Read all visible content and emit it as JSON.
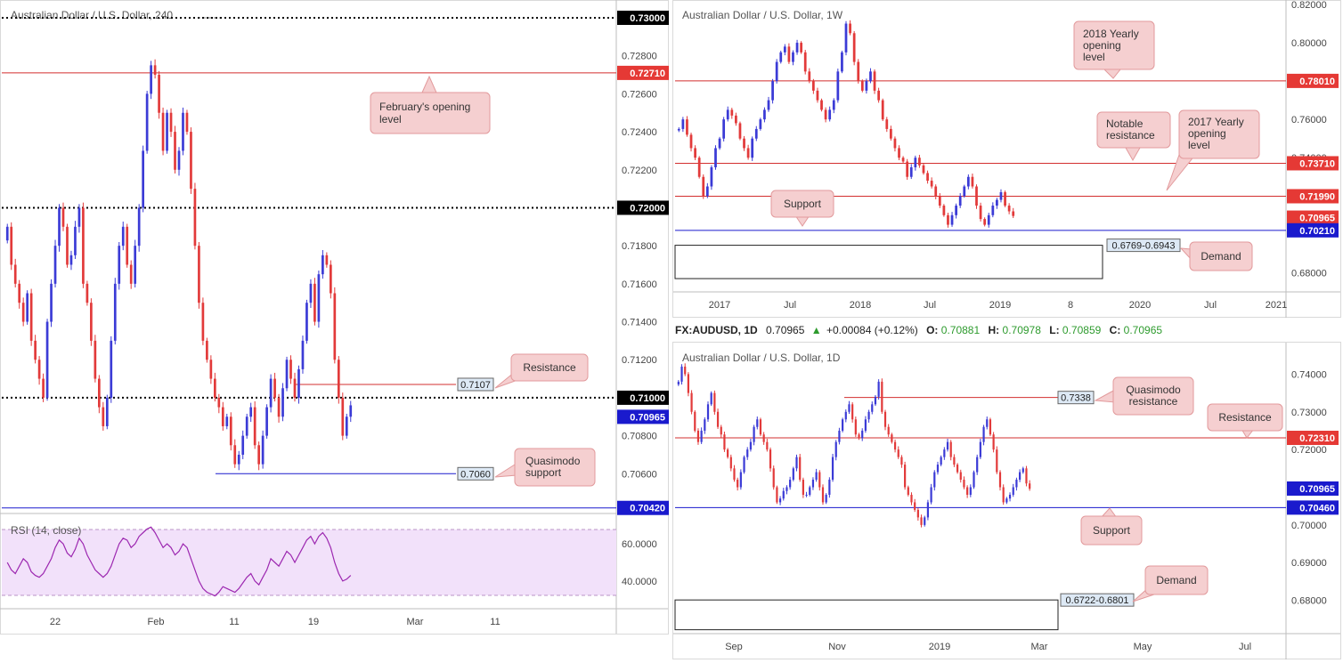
{
  "colors": {
    "up": "#3b3bd6",
    "down": "#e23a3a",
    "red_level": "#d32f2f",
    "blue_level": "#1a1acd",
    "callout_fill": "#f5cfd0",
    "callout_stroke": "#e29a9c",
    "rsi_fill": "#f2e1fa",
    "rsi_line": "#9c27b0",
    "info_green": "#2e9b2e"
  },
  "chart_data": [
    {
      "id": "h4",
      "type": "candlestick",
      "title": "Australian Dollar / U.S. Dollar, 240",
      "ylim": [
        0.704,
        0.73
      ],
      "x_ticks": [
        "22",
        "Feb",
        "11",
        "19",
        "Mar",
        "11"
      ],
      "y_ticks": [
        "0.72800",
        "0.72600",
        "0.72400",
        "0.72200",
        "0.71800",
        "0.71600",
        "0.71400",
        "0.71200",
        "0.70800",
        "0.70600"
      ],
      "dotted_levels": [
        0.73,
        0.72,
        0.71
      ],
      "lines": [
        {
          "value": 0.7271,
          "color": "red",
          "tag": "0.72710"
        },
        {
          "value": 0.7107,
          "color": "red",
          "label": "0.7107"
        },
        {
          "value": 0.706,
          "color": "blue",
          "label": "0.7060"
        },
        {
          "value": 0.7042,
          "color": "blue",
          "tag": "0.70420"
        }
      ],
      "price_tags": [
        "0.73000",
        "0.72000",
        "0.71000",
        "0.70965"
      ],
      "current": 0.70965,
      "annotations": [
        "February's opening level",
        "Resistance",
        "Quasimodo support"
      ],
      "closes": [
        0.719,
        0.717,
        0.716,
        0.715,
        0.714,
        0.7155,
        0.713,
        0.712,
        0.711,
        0.71,
        0.714,
        0.716,
        0.718,
        0.72,
        0.719,
        0.717,
        0.7175,
        0.719,
        0.72,
        0.716,
        0.715,
        0.713,
        0.711,
        0.7095,
        0.7085,
        0.71,
        0.713,
        0.716,
        0.718,
        0.719,
        0.717,
        0.716,
        0.718,
        0.72,
        0.723,
        0.726,
        0.7275,
        0.727,
        0.725,
        0.723,
        0.725,
        0.724,
        0.722,
        0.723,
        0.725,
        0.724,
        0.721,
        0.718,
        0.715,
        0.713,
        0.712,
        0.711,
        0.71,
        0.7095,
        0.7085,
        0.709,
        0.7075,
        0.7065,
        0.707,
        0.708,
        0.709,
        0.7095,
        0.7075,
        0.7065,
        0.708,
        0.7095,
        0.711,
        0.71,
        0.709,
        0.7105,
        0.712,
        0.711,
        0.71,
        0.7115,
        0.713,
        0.715,
        0.716,
        0.714,
        0.7165,
        0.7175,
        0.717,
        0.7155,
        0.712,
        0.71,
        0.708,
        0.709,
        0.7096
      ],
      "rsi": {
        "label": "RSI (14, close)",
        "ylim": [
          28,
          72
        ],
        "ticks": [
          "60.0000",
          "40.0000"
        ],
        "values": [
          50,
          46,
          44,
          48,
          52,
          50,
          45,
          43,
          42,
          44,
          48,
          52,
          58,
          62,
          60,
          55,
          53,
          57,
          63,
          60,
          54,
          50,
          46,
          44,
          42,
          44,
          48,
          54,
          60,
          63,
          62,
          58,
          60,
          64,
          66,
          68,
          69,
          66,
          62,
          58,
          60,
          58,
          54,
          56,
          60,
          58,
          52,
          46,
          40,
          36,
          34,
          33,
          32,
          34,
          37,
          36,
          35,
          34,
          36,
          39,
          42,
          44,
          40,
          38,
          42,
          46,
          52,
          50,
          48,
          52,
          56,
          54,
          50,
          54,
          58,
          62,
          64,
          60,
          64,
          66,
          63,
          58,
          50,
          44,
          40,
          41,
          43
        ]
      }
    },
    {
      "id": "w1",
      "type": "candlestick",
      "title": "Australian Dollar / U.S. Dollar, 1W",
      "ylim": [
        0.676,
        0.82
      ],
      "x_ticks": [
        "2017",
        "Jul",
        "2018",
        "Jul",
        "2019",
        "8",
        "2020",
        "Jul",
        "2021"
      ],
      "y_ticks": [
        "0.82000",
        "0.80000",
        "0.76000",
        "0.74000",
        "0.68000"
      ],
      "lines": [
        {
          "value": 0.7801,
          "color": "red",
          "tag": "0.78010"
        },
        {
          "value": 0.7371,
          "color": "red",
          "tag": "0.73710"
        },
        {
          "value": 0.7199,
          "color": "red",
          "tag": "0.71990"
        },
        {
          "value": 0.7021,
          "color": "blue",
          "tag": "0.70210"
        }
      ],
      "current": 0.70965,
      "price_tags": [
        "0.70965"
      ],
      "zone": {
        "low": 0.6769,
        "high": 0.6943,
        "label": "0.6769-0.6943"
      },
      "annotations": [
        "2018 Yearly opening level",
        "Notable resistance",
        "2017 Yearly opening level",
        "Support",
        "Demand"
      ],
      "closes": [
        0.755,
        0.76,
        0.752,
        0.745,
        0.74,
        0.73,
        0.72,
        0.725,
        0.735,
        0.745,
        0.75,
        0.76,
        0.765,
        0.762,
        0.758,
        0.75,
        0.745,
        0.74,
        0.75,
        0.755,
        0.76,
        0.765,
        0.77,
        0.78,
        0.79,
        0.795,
        0.798,
        0.79,
        0.795,
        0.8,
        0.795,
        0.785,
        0.78,
        0.775,
        0.77,
        0.765,
        0.76,
        0.765,
        0.77,
        0.785,
        0.795,
        0.81,
        0.805,
        0.79,
        0.78,
        0.775,
        0.78,
        0.785,
        0.775,
        0.77,
        0.76,
        0.755,
        0.75,
        0.745,
        0.74,
        0.738,
        0.73,
        0.735,
        0.74,
        0.736,
        0.732,
        0.728,
        0.725,
        0.72,
        0.715,
        0.71,
        0.705,
        0.71,
        0.715,
        0.72,
        0.725,
        0.73,
        0.725,
        0.715,
        0.708,
        0.705,
        0.71,
        0.715,
        0.718,
        0.722,
        0.715,
        0.712,
        0.7096
      ]
    },
    {
      "id": "d1",
      "type": "candlestick",
      "title": "Australian Dollar / U.S. Dollar, 1D",
      "ylim": [
        0.674,
        0.746
      ],
      "x_ticks": [
        "Sep",
        "Nov",
        "2019",
        "Mar",
        "May",
        "Jul"
      ],
      "y_ticks": [
        "0.74000",
        "0.73000",
        "0.72000",
        "0.70000",
        "0.69000",
        "0.68000"
      ],
      "lines": [
        {
          "value": 0.7338,
          "color": "red",
          "label": "0.7338"
        },
        {
          "value": 0.7231,
          "color": "red",
          "tag": "0.72310"
        },
        {
          "value": 0.7046,
          "color": "blue",
          "tag": "0.70460"
        }
      ],
      "current": 0.70965,
      "price_tags": [
        "0.70965"
      ],
      "zone": {
        "low": 0.6722,
        "high": 0.6801,
        "label": "0.6722-0.6801"
      },
      "annotations": [
        "Quasimodo resistance",
        "Resistance",
        "Support",
        "Demand"
      ],
      "closes": [
        0.738,
        0.742,
        0.74,
        0.735,
        0.73,
        0.725,
        0.722,
        0.725,
        0.728,
        0.732,
        0.735,
        0.73,
        0.726,
        0.724,
        0.72,
        0.718,
        0.715,
        0.712,
        0.71,
        0.714,
        0.718,
        0.72,
        0.722,
        0.726,
        0.728,
        0.724,
        0.722,
        0.72,
        0.715,
        0.71,
        0.706,
        0.707,
        0.709,
        0.71,
        0.712,
        0.715,
        0.718,
        0.712,
        0.708,
        0.708,
        0.71,
        0.712,
        0.714,
        0.71,
        0.706,
        0.708,
        0.712,
        0.718,
        0.722,
        0.725,
        0.728,
        0.73,
        0.732,
        0.728,
        0.724,
        0.723,
        0.725,
        0.728,
        0.73,
        0.732,
        0.734,
        0.738,
        0.73,
        0.726,
        0.724,
        0.722,
        0.72,
        0.718,
        0.716,
        0.71,
        0.708,
        0.706,
        0.704,
        0.702,
        0.7,
        0.702,
        0.706,
        0.71,
        0.714,
        0.716,
        0.718,
        0.72,
        0.722,
        0.718,
        0.716,
        0.714,
        0.712,
        0.71,
        0.708,
        0.71,
        0.714,
        0.718,
        0.722,
        0.726,
        0.728,
        0.724,
        0.72,
        0.714,
        0.71,
        0.706,
        0.707,
        0.708,
        0.71,
        0.712,
        0.714,
        0.715,
        0.711,
        0.7096
      ]
    }
  ],
  "info_bar": {
    "symbol": "FX:AUDUSD, 1D",
    "price": "0.70965",
    "change": "+0.00084 (+0.12%)",
    "o_label": "O:",
    "o_value": "0.70881",
    "h_label": "H:",
    "h_value": "0.70978",
    "l_label": "L:",
    "l_value": "0.70859",
    "c_label": "C:",
    "c_value": "0.70965"
  },
  "callouts": {
    "h4_feb": [
      "February's opening",
      "level"
    ],
    "h4_res": [
      "Resistance"
    ],
    "h4_qm": [
      "Quasimodo",
      "support"
    ],
    "w1_2018": [
      "2018 Yearly",
      "opening",
      "level"
    ],
    "w1_notable": [
      "Notable",
      "resistance"
    ],
    "w1_2017": [
      "2017 Yearly",
      "opening",
      "level"
    ],
    "w1_support": [
      "Support"
    ],
    "w1_demand": [
      "Demand"
    ],
    "d1_qm": [
      "Quasimodo",
      "resistance"
    ],
    "d1_res": [
      "Resistance"
    ],
    "d1_support": [
      "Support"
    ],
    "d1_demand": [
      "Demand"
    ]
  }
}
